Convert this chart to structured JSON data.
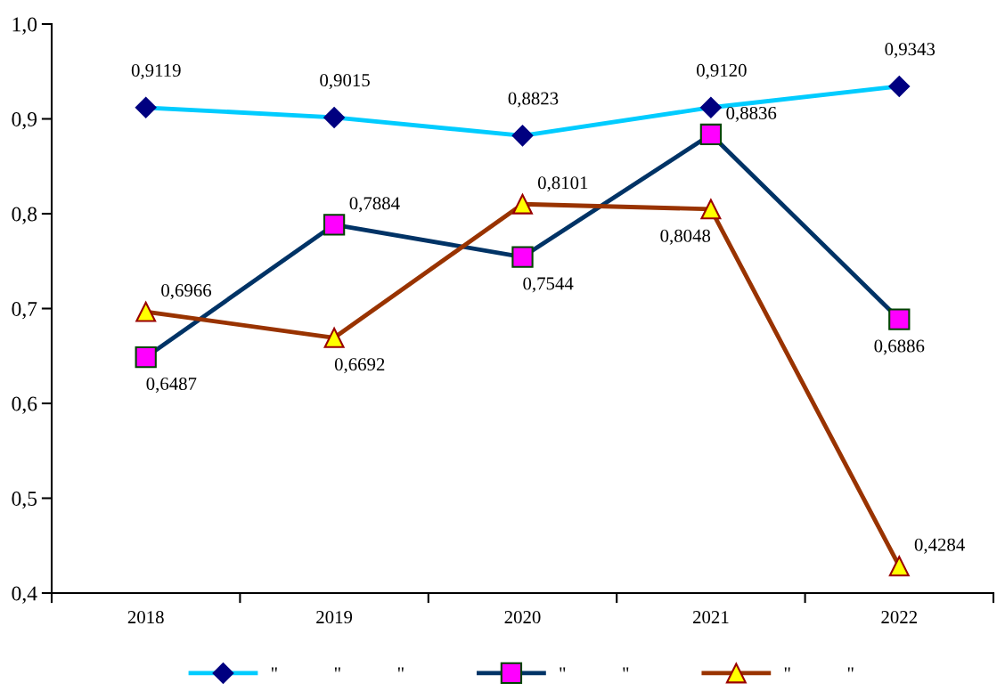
{
  "chart_data": {
    "type": "line",
    "categories": [
      "2018",
      "2019",
      "2020",
      "2021",
      "2022"
    ],
    "series": [
      {
        "name": "\"            \"            \"",
        "color": "#00ccff",
        "marker": "diamond",
        "values": [
          0.9119,
          0.9015,
          0.8823,
          0.912,
          0.9343
        ],
        "value_labels": [
          "0,9119",
          "0,9015",
          "0,8823",
          "0,9120",
          "0,9343"
        ]
      },
      {
        "name": "\"            \"",
        "color": "#003366",
        "marker": "square",
        "values": [
          0.6487,
          0.7884,
          0.7544,
          0.8836,
          0.6886
        ],
        "value_labels": [
          "0,6487",
          "0,7884",
          "0,7544",
          "0,8836",
          "0,6886"
        ]
      },
      {
        "name": "\"            \"",
        "color": "#993300",
        "marker": "triangle",
        "values": [
          0.6966,
          0.6692,
          0.8101,
          0.8048,
          0.4284
        ],
        "value_labels": [
          "0,6966",
          "0,6692",
          "0,8101",
          "0,8048",
          "0,4284"
        ]
      }
    ],
    "ylim": [
      0.4,
      1.0
    ],
    "yticks": [
      {
        "value": 0.4,
        "label": "0,4"
      },
      {
        "value": 0.5,
        "label": "0,5"
      },
      {
        "value": 0.6,
        "label": "0,6"
      },
      {
        "value": 0.7,
        "label": "0,7"
      },
      {
        "value": 0.8,
        "label": "0,8"
      },
      {
        "value": 0.9,
        "label": "0,9"
      },
      {
        "value": 1.0,
        "label": "1,0"
      }
    ],
    "grid": false,
    "legend": "bottom"
  }
}
